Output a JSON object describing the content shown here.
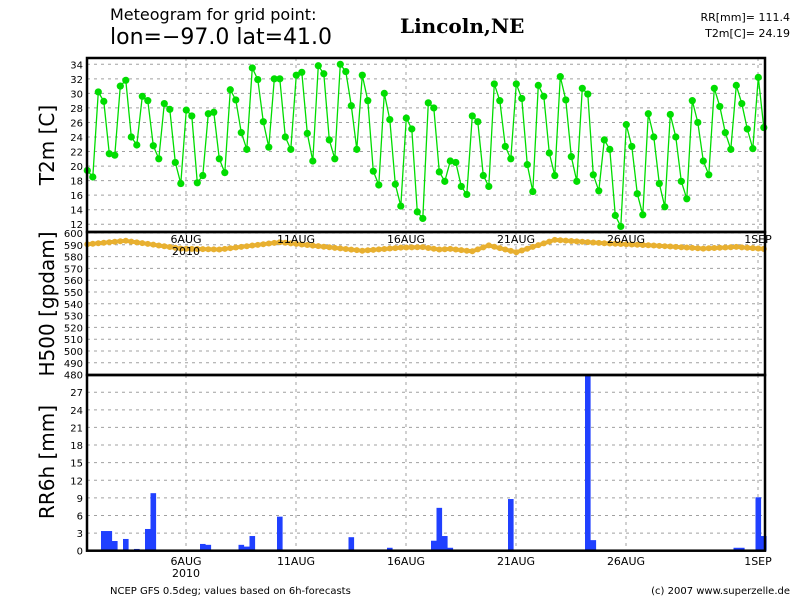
{
  "header": {
    "title_line1": "Meteogram for grid point:",
    "title_line2": "lon=−97.0  lat=41.0",
    "location": "Lincoln,NE",
    "rr_total": "RR[mm]= 111.4",
    "t2m_value": "T2m[C]= 24.19"
  },
  "footer": {
    "source": "NCEP GFS 0.5deg; values based on 6h-forecasts",
    "copyright": "(c) 2007 www.superzelle.de"
  },
  "colors": {
    "t2m": "#00dd00",
    "h500": "#e8b030",
    "rr": "#2040ff"
  },
  "chart_data": [
    {
      "type": "line",
      "title": "T2m [C]",
      "ylabel": "T2m [C]",
      "x_interval_hours": 6,
      "ylim": [
        11,
        35
      ],
      "yticks": [
        "12",
        "14",
        "16",
        "18",
        "20",
        "22",
        "24",
        "26",
        "28",
        "30",
        "32",
        "34"
      ],
      "xticks": [
        "6AUG",
        "11AUG",
        "16AUG",
        "21AUG",
        "26AUG",
        "1SEP"
      ],
      "year_label": "2010",
      "values": [
        19.4,
        18.5,
        30.2,
        28.9,
        21.7,
        21.5,
        31.0,
        31.8,
        24.0,
        22.9,
        29.6,
        29.0,
        22.8,
        21.0,
        28.6,
        27.8,
        20.5,
        17.6,
        27.7,
        26.9,
        17.7,
        18.7,
        27.2,
        27.4,
        21.0,
        19.1,
        30.5,
        29.1,
        24.6,
        22.3,
        33.5,
        31.9,
        26.1,
        22.6,
        32.0,
        32.0,
        24.0,
        22.3,
        32.5,
        32.9,
        24.5,
        20.7,
        33.8,
        32.7,
        23.6,
        21.0,
        34.0,
        33.0,
        28.3,
        22.3,
        32.5,
        29.0,
        19.3,
        17.4,
        30.0,
        26.4,
        17.5,
        14.5,
        26.6,
        25.1,
        13.7,
        12.8,
        28.7,
        28.0,
        19.2,
        17.9,
        20.7,
        20.5,
        17.2,
        16.1,
        26.9,
        26.1,
        18.7,
        17.2,
        31.3,
        29.0,
        22.7,
        21.0,
        31.3,
        29.3,
        20.2,
        16.5,
        31.1,
        29.6,
        21.8,
        18.7,
        32.3,
        29.1,
        21.3,
        17.9,
        30.7,
        29.9,
        18.8,
        16.6,
        23.6,
        22.3,
        13.2,
        11.7,
        25.7,
        22.7,
        16.2,
        13.3,
        27.2,
        24.0,
        17.6,
        14.4,
        27.1,
        24.0,
        17.9,
        15.5,
        29.0,
        26.0,
        20.7,
        18.8,
        30.7,
        28.2,
        24.6,
        22.3,
        31.1,
        28.6,
        25.1,
        22.4,
        32.2,
        25.3
      ]
    },
    {
      "type": "line",
      "title": "H500 [gpdam]",
      "ylabel": "H500 [gpdam]",
      "x_interval_hours": 6,
      "ylim": [
        480,
        600
      ],
      "yticks": [
        "480",
        "490",
        "500",
        "510",
        "520",
        "530",
        "540",
        "550",
        "560",
        "570",
        "580",
        "590",
        "600"
      ],
      "keypoints_index": [
        0,
        7,
        17,
        24,
        35,
        50,
        57,
        61,
        64,
        66,
        70,
        73,
        78,
        85,
        94,
        103,
        112,
        118,
        123
      ],
      "keypoints_value": [
        590.5,
        593.4,
        586.8,
        586,
        592.2,
        585,
        587.6,
        588,
        586,
        586.5,
        584.5,
        589.5,
        583.7,
        594.2,
        591.3,
        589.4,
        586.8,
        588.2,
        586.5
      ]
    },
    {
      "type": "bar",
      "title": "RR6h [mm]",
      "ylabel": "RR6h [mm]",
      "x_interval_hours": 6,
      "ylim": [
        0,
        30
      ],
      "yticks": [
        "0",
        "3",
        "6",
        "9",
        "12",
        "15",
        "18",
        "21",
        "24",
        "27"
      ],
      "bar_index": [
        3,
        4,
        5,
        7,
        8,
        9,
        11,
        12,
        21,
        22,
        28,
        29,
        30,
        35,
        36,
        48,
        55,
        62,
        63,
        64,
        65,
        66,
        68,
        77,
        91,
        92,
        118,
        119,
        122,
        123
      ],
      "bar_values": [
        3.35,
        3.35,
        1.65,
        2.0,
        0.1,
        0.3,
        3.7,
        9.8,
        1.15,
        1.0,
        1.0,
        0.7,
        2.5,
        5.8,
        0.1,
        2.3,
        0.5,
        0.1,
        1.7,
        7.3,
        2.5,
        0.5,
        0.1,
        8.8,
        36.7,
        1.8,
        0.5,
        0.5,
        9.1,
        2.5
      ]
    }
  ]
}
